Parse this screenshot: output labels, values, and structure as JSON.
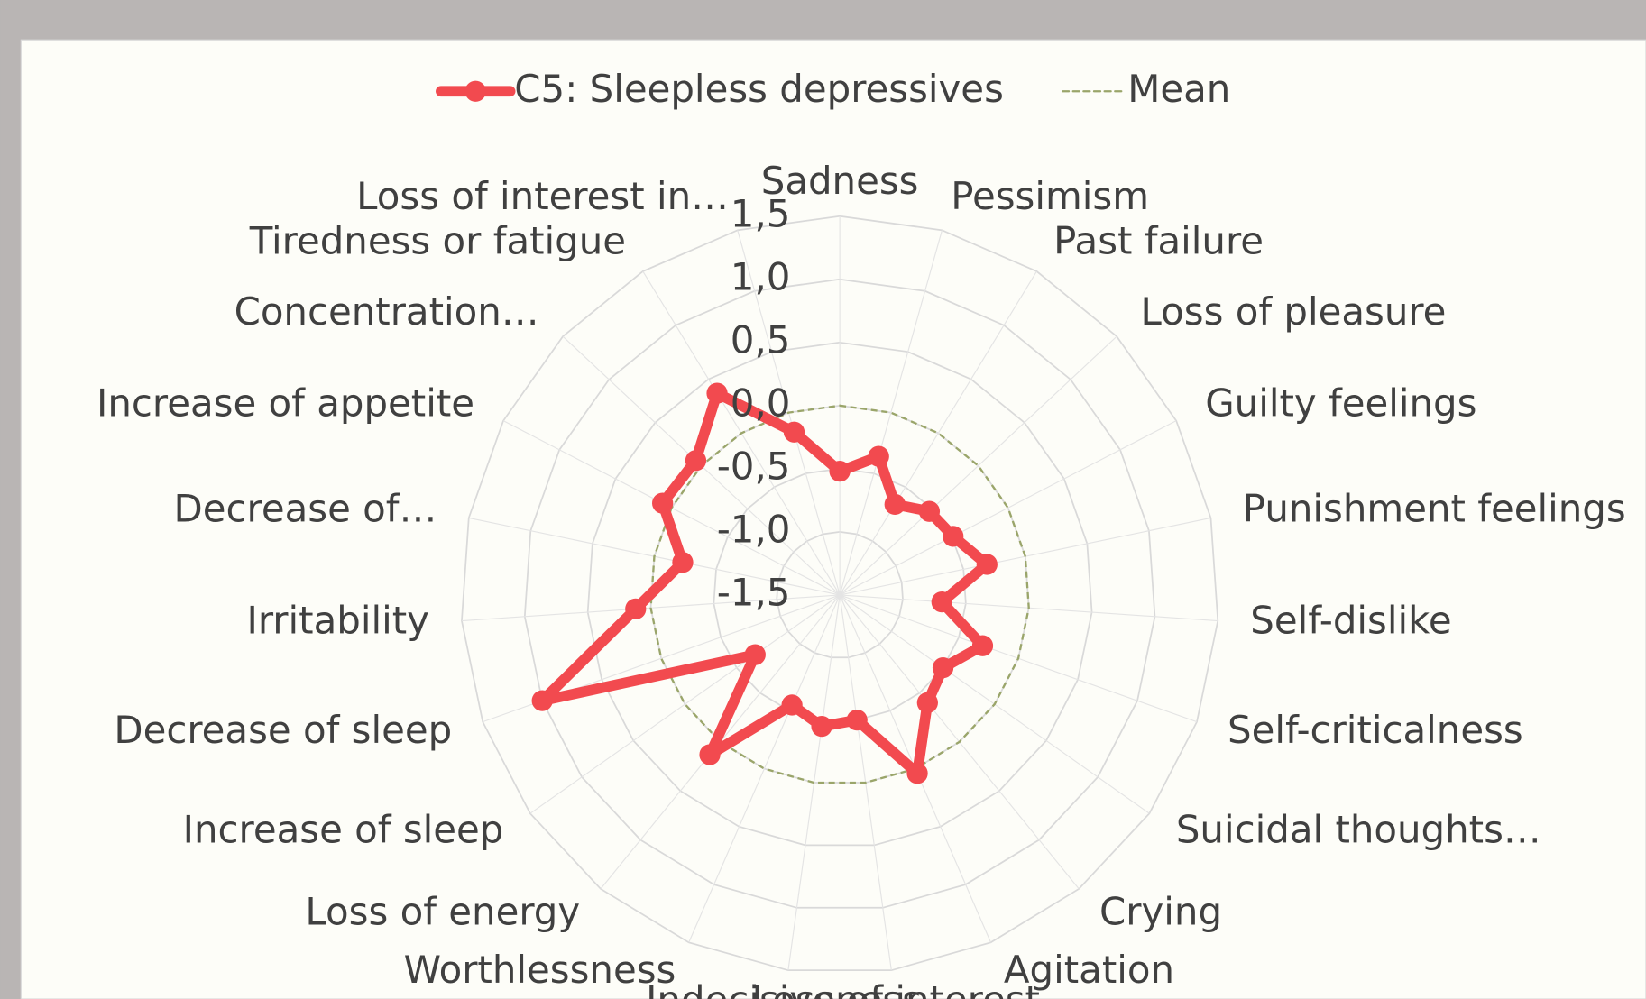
{
  "chart_data": {
    "type": "radar",
    "categories": [
      "Sadness",
      "Pessimism",
      "Past failure",
      "Loss of pleasure",
      "Guilty feelings",
      "Punishment feelings",
      "Self-dislike",
      "Self-criticalness",
      "Suicidal thoughts…",
      "Crying",
      "Agitation",
      "Loss of interest",
      "Indecisiveness",
      "Worthlessness",
      "Loss of energy",
      "Increase of sleep",
      "Decrease of sleep",
      "Irritability",
      "Decrease of…",
      "Increase of appetite",
      "Concentration…",
      "Tiredness or fatigue",
      "Loss of interest in…"
    ],
    "series": [
      {
        "name": "C5: Sleepless depressives",
        "color": "#f24a4f",
        "line_style": "solid",
        "markers": true,
        "values": [
          -0.52,
          -0.36,
          -0.66,
          -0.53,
          -0.49,
          -0.31,
          -0.69,
          -0.3,
          -0.5,
          -0.4,
          0.04,
          -0.5,
          -0.45,
          -0.55,
          0.13,
          -0.68,
          1.0,
          0.12,
          -0.23,
          0.08,
          0.06,
          0.37,
          -0.16
        ]
      },
      {
        "name": "Mean",
        "color": "#9aa56a",
        "line_style": "dashed",
        "markers": false,
        "values": [
          0,
          0,
          0,
          0,
          0,
          0,
          0,
          0,
          0,
          0,
          0,
          0,
          0,
          0,
          0,
          0,
          0,
          0,
          0,
          0,
          0,
          0,
          0
        ]
      }
    ],
    "ylim": [
      -1.5,
      1.5
    ],
    "yticks": [
      {
        "value": -1.5,
        "label": "-1,5"
      },
      {
        "value": -1.0,
        "label": "-1,0"
      },
      {
        "value": -0.5,
        "label": "-0,5"
      },
      {
        "value": 0.0,
        "label": "0,0"
      },
      {
        "value": 0.5,
        "label": "0,5"
      },
      {
        "value": 1.0,
        "label": "1,0"
      },
      {
        "value": 1.5,
        "label": "1,5"
      }
    ],
    "grid": true,
    "legend": "top"
  }
}
